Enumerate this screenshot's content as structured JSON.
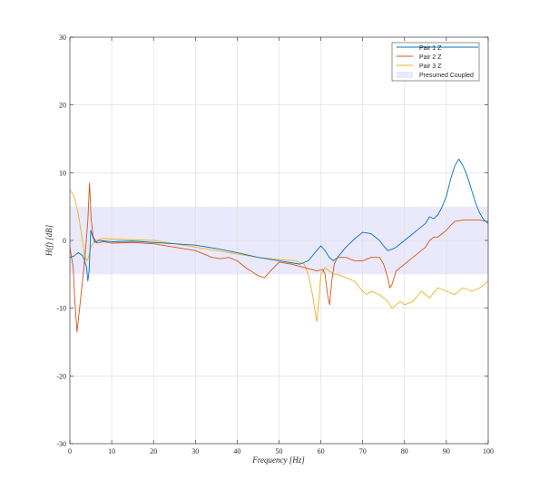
{
  "chart_data": {
    "type": "line",
    "title": "",
    "xlabel": "Frequency [Hz]",
    "ylabel": "H(f) [dB]",
    "xlim": [
      0,
      100
    ],
    "ylim": [
      -30,
      30
    ],
    "xticks": [
      "0",
      "10",
      "20",
      "30",
      "40",
      "50",
      "60",
      "70",
      "80",
      "90",
      "100"
    ],
    "yticks": [
      "-30",
      "-20",
      "-10",
      "0",
      "10",
      "20",
      "30"
    ],
    "grid": true,
    "legend_position": "top-right",
    "band": {
      "name": "Presumed Coupled",
      "y0": -5,
      "y1": 5,
      "color": "#e9e9fb"
    },
    "series": [
      {
        "name": "Pair 1 Z",
        "color": "#0072bd",
        "x": [
          0,
          1,
          2,
          3,
          3.5,
          4,
          4.3,
          4.6,
          5,
          5.5,
          6,
          7,
          10,
          15,
          20,
          25,
          30,
          35,
          40,
          45,
          50,
          55,
          57,
          59,
          60,
          61,
          62,
          63,
          64,
          66,
          68,
          70,
          72,
          74,
          75,
          76,
          77,
          78,
          80,
          82,
          84,
          85,
          86,
          87,
          88,
          89,
          90,
          91,
          92,
          93,
          94,
          95,
          96,
          97,
          98,
          99,
          100
        ],
        "y": [
          -2.5,
          -2.3,
          -1.8,
          -2.2,
          -3,
          -4,
          -6,
          -4.5,
          1.5,
          0.5,
          -0.3,
          0,
          -0.2,
          -0.1,
          -0.3,
          -0.5,
          -0.7,
          -1.2,
          -1.8,
          -2.5,
          -3,
          -3.5,
          -3,
          -1.5,
          -0.8,
          -1.5,
          -2.5,
          -3,
          -2.5,
          -1,
          0.2,
          1.2,
          1,
          0,
          -0.8,
          -1.5,
          -1.3,
          -1,
          0,
          1,
          2,
          2.5,
          3.5,
          3.2,
          3.8,
          5,
          6.5,
          9,
          11,
          12,
          11,
          9.5,
          7.5,
          5.5,
          4,
          3,
          2.5
        ]
      },
      {
        "name": "Pair 2 Z",
        "color": "#d95319",
        "x": [
          0,
          0.8,
          1.2,
          1.7,
          2.5,
          3.2,
          3.8,
          4.3,
          4.7,
          5.1,
          5.6,
          6.5,
          8,
          10,
          15,
          20,
          25,
          30,
          32,
          34,
          36,
          38,
          40,
          42,
          45,
          46.5,
          48,
          50,
          53,
          56,
          59,
          60.5,
          61,
          61.6,
          62.1,
          62.6,
          63.2,
          64,
          66,
          68,
          70,
          72,
          74,
          75,
          76,
          76.5,
          77,
          78,
          80,
          82,
          84,
          85,
          86,
          87,
          88,
          89,
          90,
          91,
          92,
          94,
          96,
          98,
          100
        ],
        "y": [
          -1,
          -4,
          -9,
          -13.5,
          -9,
          -5,
          -1,
          3,
          8.5,
          3,
          0.5,
          -0.4,
          -0.2,
          -0.4,
          -0.3,
          -0.5,
          -1,
          -1.5,
          -2,
          -2.5,
          -2.7,
          -2.5,
          -3,
          -4,
          -5.2,
          -5.5,
          -4.5,
          -3.2,
          -3.5,
          -4,
          -4.5,
          -4.3,
          -5,
          -8,
          -9.5,
          -6,
          -3.5,
          -2.5,
          -2.5,
          -3,
          -3,
          -2.5,
          -2.5,
          -3.5,
          -5.5,
          -7,
          -6.5,
          -4.5,
          -3.5,
          -2.5,
          -1.5,
          -1,
          0,
          0.5,
          0.5,
          1,
          1.5,
          2.2,
          2.8,
          3,
          3,
          3,
          2.8
        ]
      },
      {
        "name": "Pair 3 Z",
        "color": "#edb120",
        "x": [
          0,
          1,
          2,
          2.5,
          3,
          3.5,
          4,
          4.5,
          5,
          6,
          8,
          10,
          15,
          20,
          25,
          30,
          35,
          40,
          45,
          50,
          54,
          56,
          57,
          58,
          58.5,
          59,
          59.5,
          60,
          61,
          62,
          63,
          64,
          66,
          68,
          70,
          71,
          72,
          74,
          76,
          77,
          78,
          79,
          80,
          82,
          84,
          86,
          88,
          90,
          92,
          94,
          96,
          98,
          100
        ],
        "y": [
          7.5,
          6.5,
          4,
          2,
          0,
          -2,
          -3,
          -2.5,
          -1,
          0,
          0.3,
          0.2,
          0.1,
          0,
          -0.5,
          -1,
          -1.5,
          -2,
          -2.5,
          -2.8,
          -3,
          -3.5,
          -5,
          -8,
          -10,
          -12,
          -9,
          -5,
          -4,
          -4.5,
          -5,
          -5,
          -5.5,
          -6,
          -7.5,
          -8,
          -7.5,
          -8,
          -9,
          -10,
          -9.5,
          -9,
          -9.5,
          -9,
          -7.5,
          -8.5,
          -7,
          -7.5,
          -8,
          -7,
          -7.5,
          -7,
          -6
        ]
      }
    ]
  }
}
